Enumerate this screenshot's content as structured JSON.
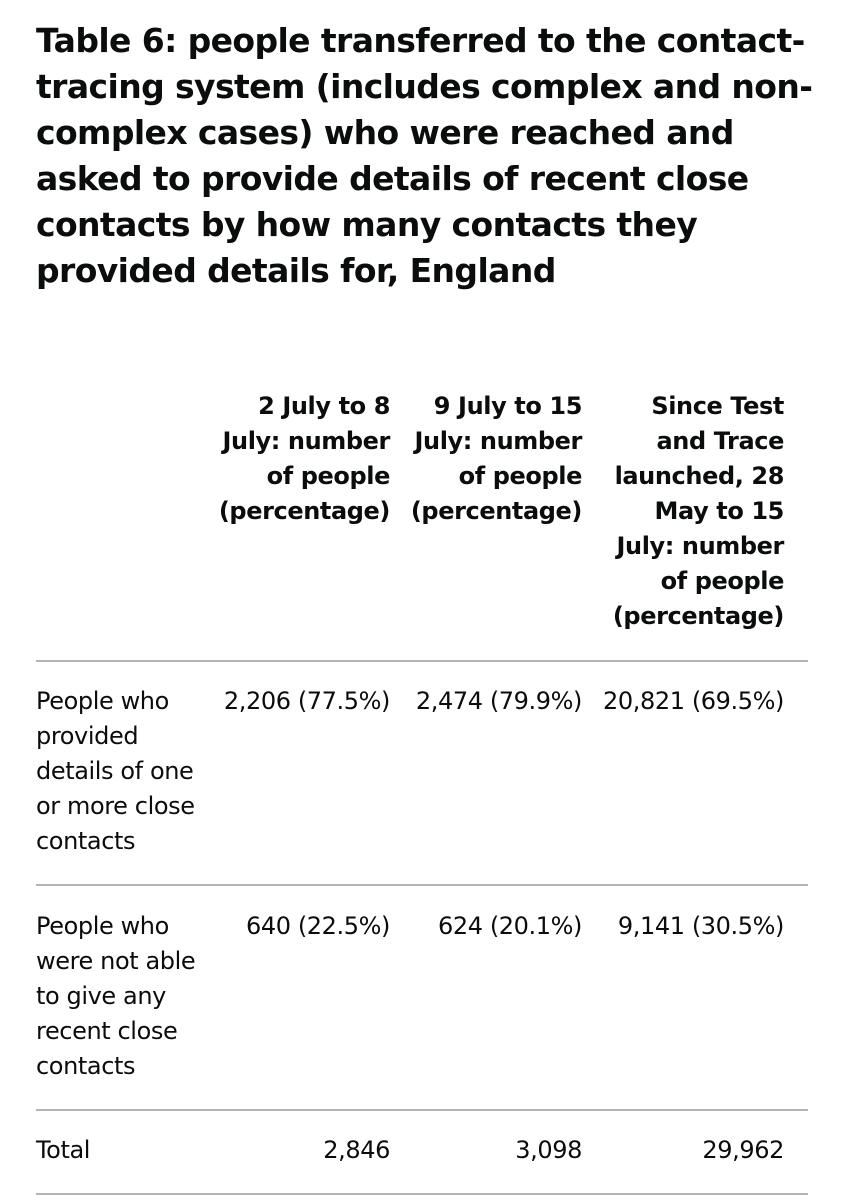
{
  "title": "Table 6: people transferred to the contact-tracing system (includes complex and non-complex cases) who were reached and asked to provide details of recent close contacts by how many contacts they provided details for, England",
  "table": {
    "columns": [
      "",
      "2 July to 8 July: number of people (percentage)",
      "9 July to 15 July: number of people (percentage)",
      "Since Test and Trace launched, 28 May to 15 July: number of people (percentage)"
    ],
    "rows": [
      {
        "label": "People who provided details of one or more close contacts",
        "values": [
          "2,206 (77.5%)",
          "2,474 (79.9%)",
          "20,821 (69.5%)"
        ]
      },
      {
        "label": "People who were not able to give any recent close contacts",
        "values": [
          "640 (22.5%)",
          "624 (20.1%)",
          "9,141 (30.5%)"
        ]
      },
      {
        "label": "Total",
        "values": [
          "2,846",
          "3,098",
          "29,962"
        ]
      }
    ]
  }
}
